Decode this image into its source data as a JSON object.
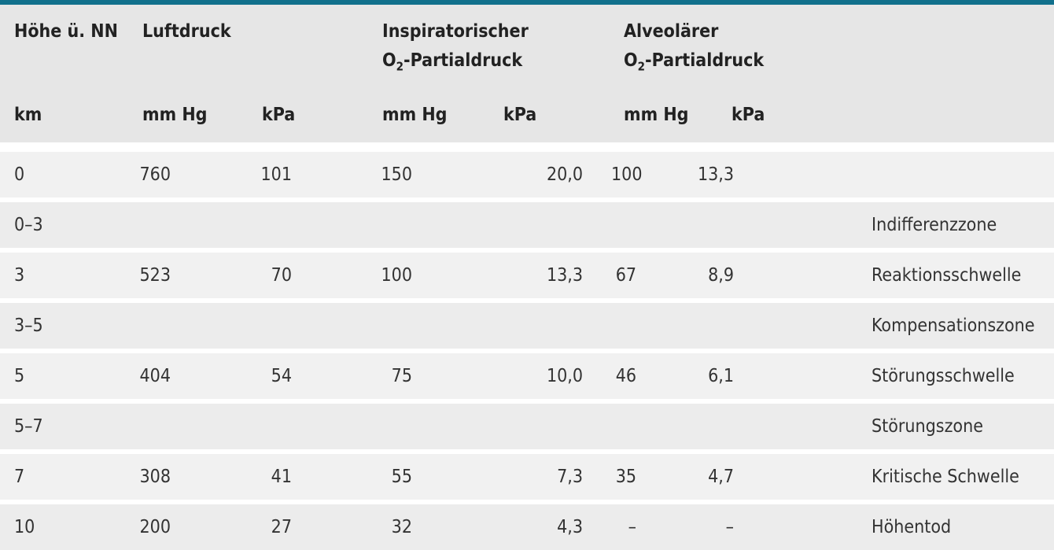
{
  "header": {
    "height_label": "Höhe ü. NN",
    "pressure_label": "Luftdruck",
    "insp_label_line1": "Inspiratorischer",
    "insp_label_o": "O",
    "insp_label_sub": "2",
    "insp_label_rest": "-Partialdruck",
    "alv_label_line1": "Alveolärer",
    "alv_label_o": "O",
    "alv_label_sub": "2",
    "alv_label_rest": "-Partialdruck",
    "unit_km": "km",
    "unit_mmhg_1": "mm Hg",
    "unit_kpa_1": "kPa",
    "unit_mmhg_2": "mm Hg",
    "unit_kpa_2": "kPa",
    "unit_mmhg_3": "mm Hg",
    "unit_kpa_3": "kPa"
  },
  "rows": [
    {
      "km": "0",
      "p_mmhg": "760",
      "p_kpa": "101",
      "i_mmhg": "150",
      "i_kpa": "20,0",
      "a_mmhg": "100",
      "a_kpa": "13,3",
      "zone": ""
    },
    {
      "km": "0–3",
      "p_mmhg": "",
      "p_kpa": "",
      "i_mmhg": "",
      "i_kpa": "",
      "a_mmhg": "",
      "a_kpa": "",
      "zone": "Indifferenzzone"
    },
    {
      "km": "3",
      "p_mmhg": "523",
      "p_kpa": "70",
      "i_mmhg": "100",
      "i_kpa": "13,3",
      "a_mmhg": "67",
      "a_kpa": "8,9",
      "zone": "Reaktionsschwelle"
    },
    {
      "km": "3–5",
      "p_mmhg": "",
      "p_kpa": "",
      "i_mmhg": "",
      "i_kpa": "",
      "a_mmhg": "",
      "a_kpa": "",
      "zone": "Kompensationszone"
    },
    {
      "km": "5",
      "p_mmhg": "404",
      "p_kpa": "54",
      "i_mmhg": "75",
      "i_kpa": "10,0",
      "a_mmhg": "46",
      "a_kpa": "6,1",
      "zone": "Störungsschwelle"
    },
    {
      "km": "5–7",
      "p_mmhg": "",
      "p_kpa": "",
      "i_mmhg": "",
      "i_kpa": "",
      "a_mmhg": "",
      "a_kpa": "",
      "zone": "Störungszone"
    },
    {
      "km": "7",
      "p_mmhg": "308",
      "p_kpa": "41",
      "i_mmhg": "55",
      "i_kpa": "7,3",
      "a_mmhg": "35",
      "a_kpa": "4,7",
      "zone": "Kritische Schwelle"
    },
    {
      "km": "10",
      "p_mmhg": "200",
      "p_kpa": "27",
      "i_mmhg": "32",
      "i_kpa": "4,3",
      "a_mmhg": "–",
      "a_kpa": "–",
      "zone": "Höhentod"
    }
  ]
}
